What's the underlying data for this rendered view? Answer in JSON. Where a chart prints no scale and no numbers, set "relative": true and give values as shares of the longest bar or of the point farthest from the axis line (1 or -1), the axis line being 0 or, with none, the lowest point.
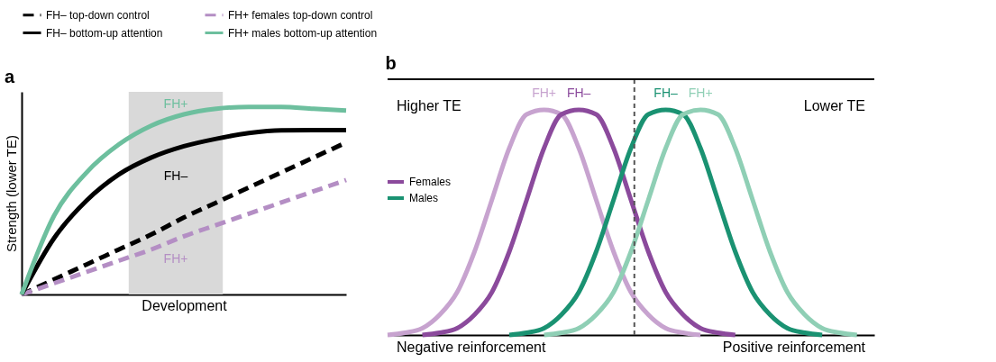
{
  "chart_data": [
    {
      "type": "line",
      "title": "a",
      "xlabel": "Development",
      "ylabel": "Strength (lower TE)",
      "relative": true,
      "legend": "top",
      "grid": false,
      "categories": [
        null,
        null,
        null,
        null,
        null,
        null,
        null,
        null,
        null,
        null,
        null
      ],
      "series": [
        {
          "name": "FH– top-down control",
          "color": "#000000",
          "line_style": "dashed",
          "values": [
            0,
            0.08,
            0.16,
            0.24,
            0.32,
            0.41,
            0.49,
            0.57,
            0.65,
            0.73,
            0.81
          ]
        },
        {
          "name": "FH+ females top-down control",
          "color": "#b48ec4",
          "line_style": "dashed",
          "values": [
            0,
            0.06,
            0.12,
            0.18,
            0.24,
            0.31,
            0.37,
            0.43,
            0.49,
            0.55,
            0.61
          ]
        },
        {
          "name": "FH– bottom-up attention",
          "color": "#000000",
          "line_style": "solid",
          "values": [
            0,
            0.3,
            0.5,
            0.64,
            0.73,
            0.79,
            0.83,
            0.86,
            0.875,
            0.876,
            0.876
          ]
        },
        {
          "name": "FH+ males bottom-up attention",
          "color": "#6dbf9e",
          "line_style": "solid",
          "values": [
            0,
            0.42,
            0.65,
            0.8,
            0.9,
            0.96,
            0.99,
            1,
            1,
            0.99,
            0.98
          ]
        }
      ],
      "annotations": [
        "FH+",
        "FH–",
        "FH+"
      ]
    },
    {
      "type": "line",
      "title": "b",
      "relative": true,
      "legend": false,
      "grid": false,
      "categories": [
        null,
        null,
        null,
        null,
        null,
        null,
        null,
        null,
        null,
        null,
        null,
        null,
        null,
        null,
        null,
        null,
        null,
        null,
        null,
        null,
        null,
        null,
        null,
        null,
        null,
        null,
        null,
        null,
        null
      ],
      "series": [
        {
          "name": "FH+",
          "color": "#c7a3cf",
          "line_style": "solid",
          "values": [
            0,
            0.01,
            0.03,
            0.09,
            0.19,
            0.37,
            0.6,
            0.83,
            0.98,
            1,
            0.98,
            0.83,
            0.6,
            0.37,
            0.19,
            0.09,
            0.03,
            0.01,
            0,
            null,
            null,
            null,
            null,
            null,
            null,
            null,
            null,
            null,
            null
          ]
        },
        {
          "name": "FH–",
          "color": "#8b4a9c",
          "line_style": "solid",
          "values": [
            null,
            null,
            0,
            0.01,
            0.03,
            0.09,
            0.19,
            0.37,
            0.6,
            0.83,
            0.98,
            1,
            0.98,
            0.83,
            0.6,
            0.37,
            0.19,
            0.09,
            0.03,
            0.01,
            0,
            null,
            null,
            null,
            null,
            null,
            null,
            null,
            null
          ]
        },
        {
          "name": "FH–",
          "color": "#1a9272",
          "line_style": "solid",
          "values": [
            null,
            null,
            null,
            null,
            null,
            null,
            null,
            0,
            0.01,
            0.03,
            0.09,
            0.19,
            0.37,
            0.6,
            0.83,
            0.98,
            1,
            0.98,
            0.83,
            0.6,
            0.37,
            0.19,
            0.09,
            0.03,
            0.01,
            0,
            null,
            null,
            null
          ]
        },
        {
          "name": "FH+",
          "color": "#8fcfb5",
          "line_style": "solid",
          "values": [
            null,
            null,
            null,
            null,
            null,
            null,
            null,
            null,
            null,
            0,
            0.01,
            0.03,
            0.09,
            0.19,
            0.37,
            0.6,
            0.83,
            0.98,
            1,
            0.98,
            0.83,
            0.6,
            0.37,
            0.19,
            0.09,
            0.03,
            0.01,
            0,
            null
          ]
        }
      ],
      "annotations": [
        "Higher TE",
        "Lower TE",
        "Negative reinforcement",
        "Positive reinforcement",
        "Females",
        "Males"
      ]
    }
  ]
}
